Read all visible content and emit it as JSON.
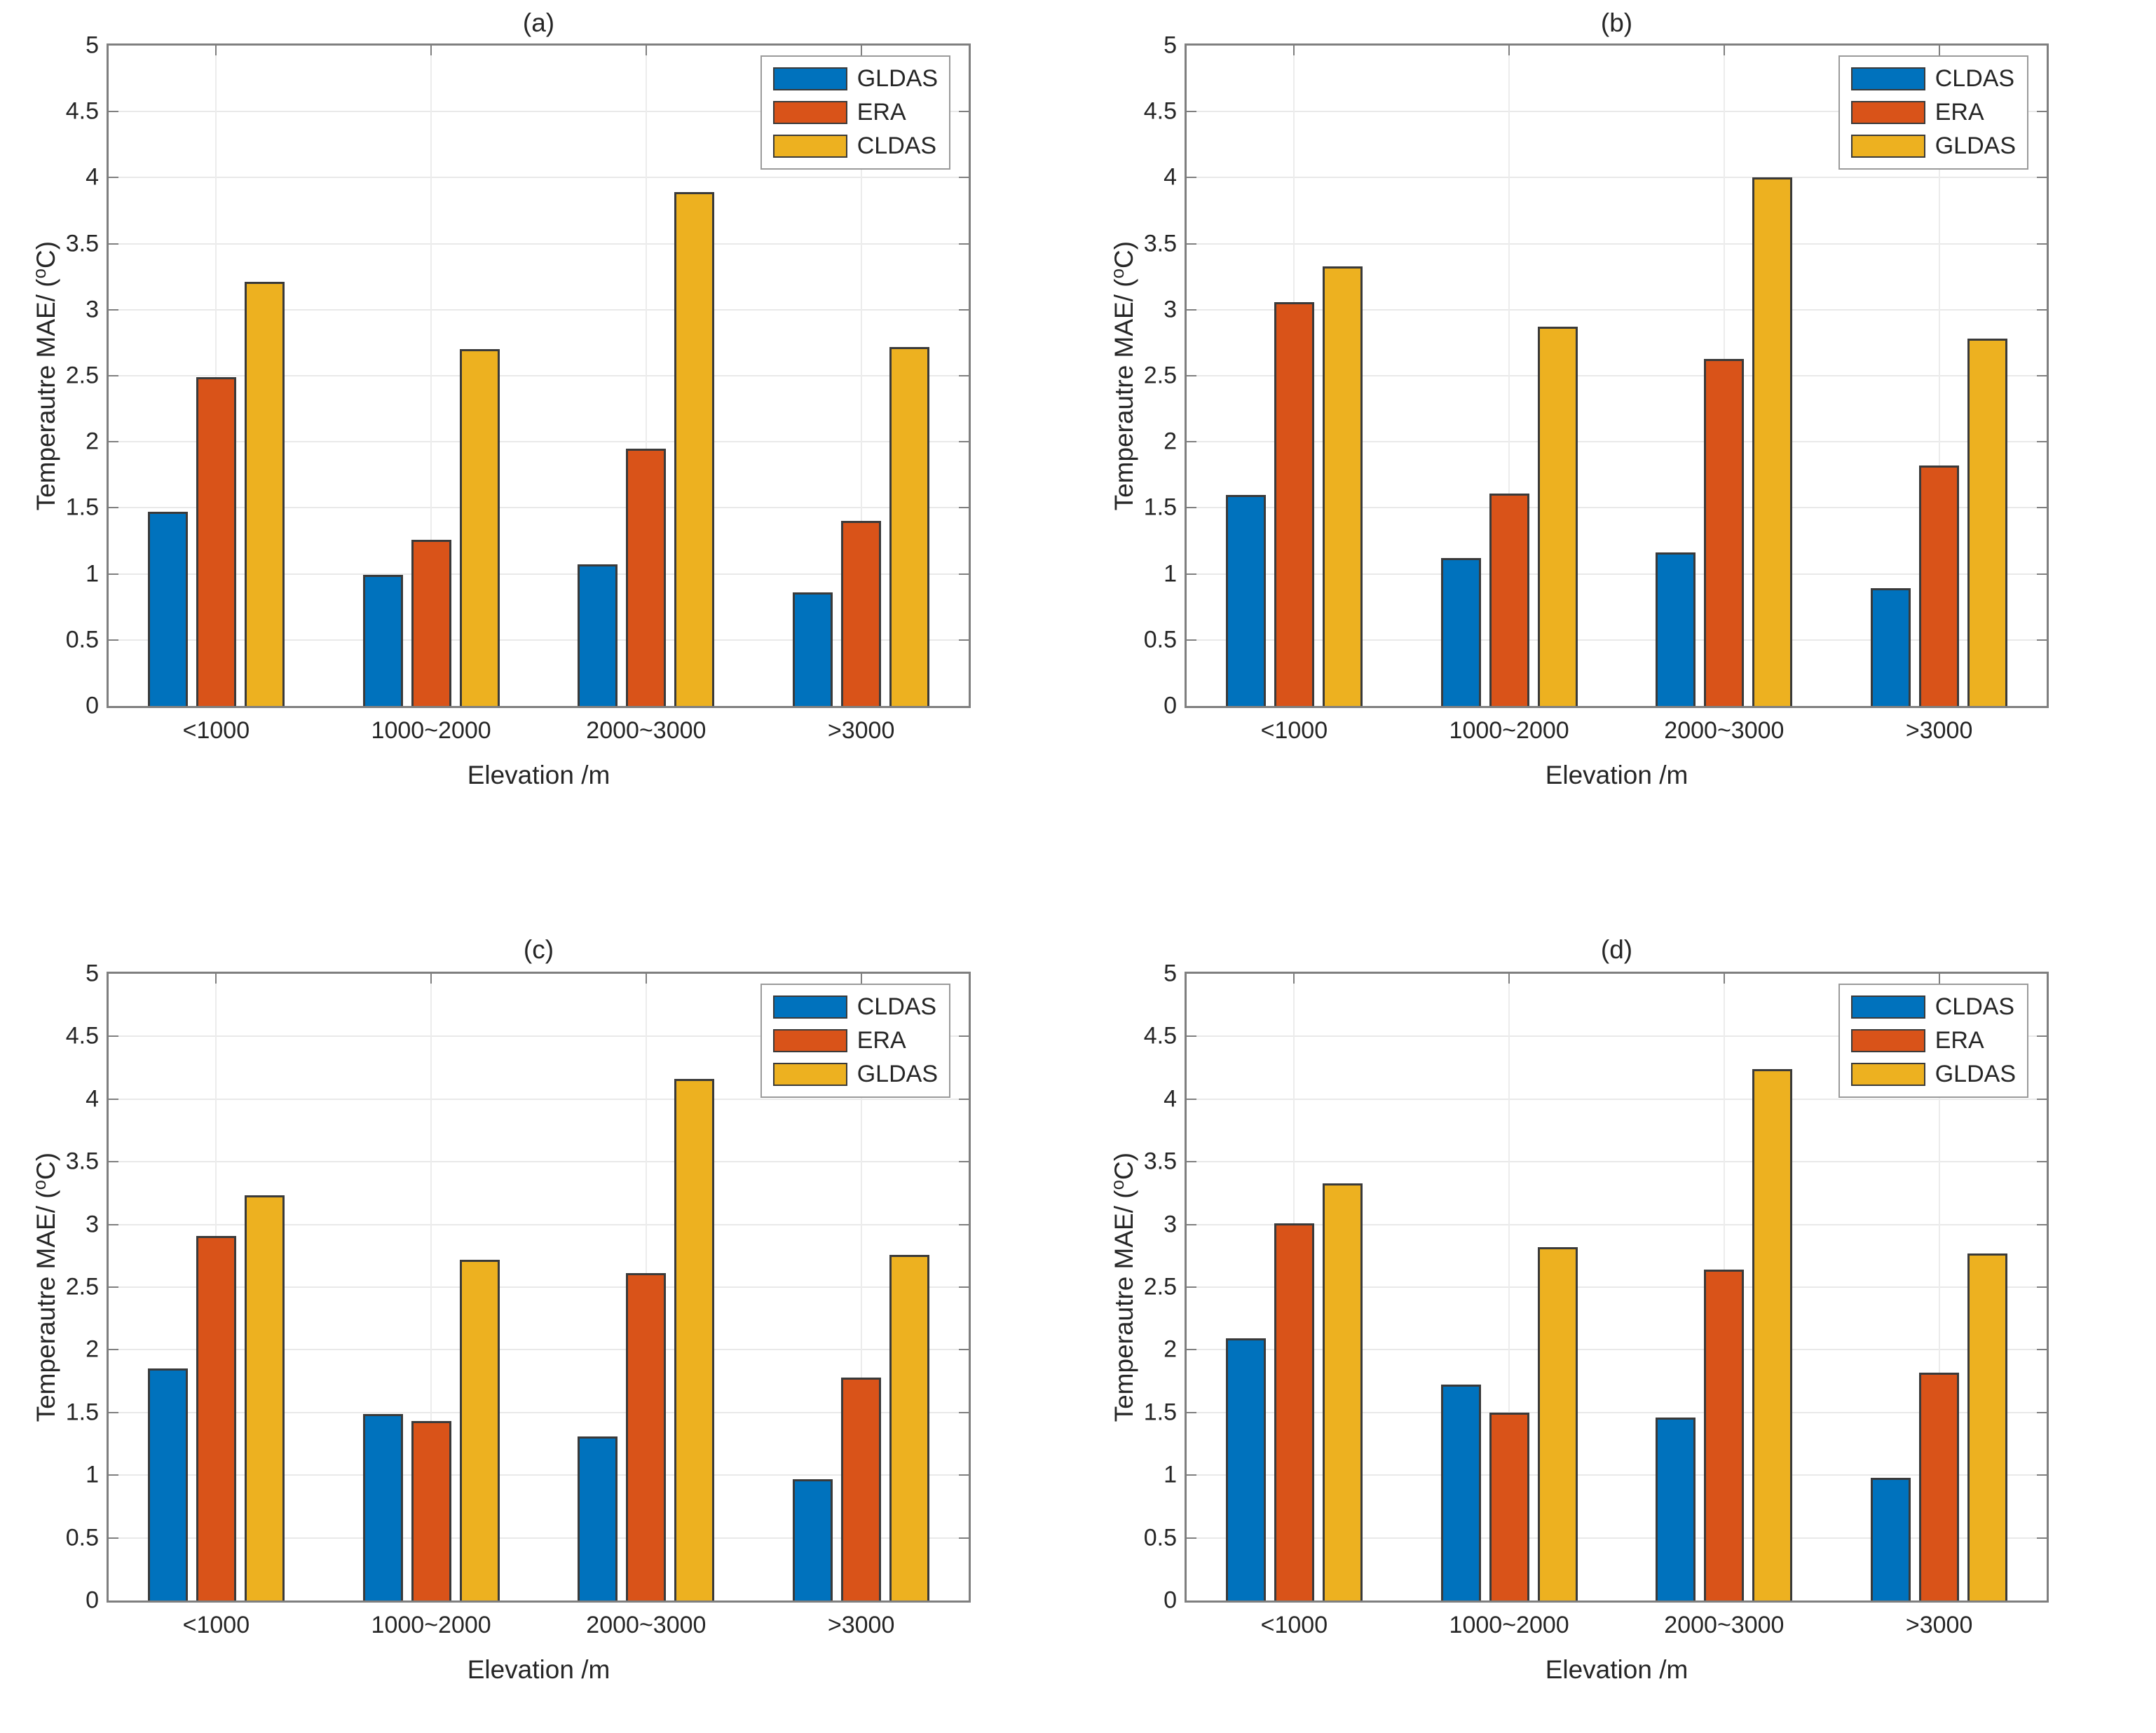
{
  "page": {
    "background": "#ffffff"
  },
  "colors": {
    "series_blue": "#0072BD",
    "series_orange": "#D95319",
    "series_yellow": "#EDB120",
    "bar_edge": "#3a3a3a",
    "axis_box": "#7f7f7f",
    "gridline": "#e9e9e9",
    "text": "#262626",
    "legend_border": "#9a9a9a"
  },
  "axis": {
    "ylabel": "Temperautre MAE/ (ᵒC)",
    "ylabel_prefix": "Temperautre MAE/ (",
    "ylabel_sup": "o",
    "ylabel_suffix": "C)",
    "xlabel": "Elevation /m",
    "ymin": 0,
    "ymax": 5,
    "ystep": 0.5,
    "ytick_labels": [
      "0",
      "0.5",
      "1",
      "1.5",
      "2",
      "2.5",
      "3",
      "3.5",
      "4",
      "4.5",
      "5"
    ]
  },
  "chart_data": [
    {
      "type": "bar",
      "title": "(a)",
      "categories": [
        "<1000",
        "1000~2000",
        "2000~3000",
        ">3000"
      ],
      "series": [
        {
          "name": "GLDAS",
          "color": "blue",
          "values": [
            1.47,
            0.99,
            1.07,
            0.86
          ]
        },
        {
          "name": "ERA",
          "color": "orange",
          "values": [
            2.49,
            1.26,
            1.95,
            1.4
          ]
        },
        {
          "name": "CLDAS",
          "color": "yellow",
          "values": [
            3.21,
            2.7,
            3.89,
            2.72
          ]
        }
      ],
      "legend": [
        "GLDAS",
        "ERA",
        "CLDAS"
      ],
      "legend_position": "top-right",
      "xlabel": "Elevation /m",
      "ylabel": "Temperautre MAE/ (ᵒC)",
      "ylim": [
        0,
        5
      ],
      "grid": true
    },
    {
      "type": "bar",
      "title": "(b)",
      "categories": [
        "<1000",
        "1000~2000",
        "2000~3000",
        ">3000"
      ],
      "series": [
        {
          "name": "CLDAS",
          "color": "blue",
          "values": [
            1.6,
            1.12,
            1.16,
            0.89
          ]
        },
        {
          "name": "ERA",
          "color": "orange",
          "values": [
            3.06,
            1.61,
            2.63,
            1.82
          ]
        },
        {
          "name": "GLDAS",
          "color": "yellow",
          "values": [
            3.33,
            2.87,
            4.0,
            2.78
          ]
        }
      ],
      "legend": [
        "CLDAS",
        "ERA",
        "GLDAS"
      ],
      "legend_position": "top-right",
      "xlabel": "Elevation /m",
      "ylabel": "Temperautre MAE/ (ᵒC)",
      "ylim": [
        0,
        5
      ],
      "grid": true
    },
    {
      "type": "bar",
      "title": "(c)",
      "categories": [
        "<1000",
        "1000~2000",
        "2000~3000",
        ">3000"
      ],
      "series": [
        {
          "name": "CLDAS",
          "color": "blue",
          "values": [
            1.85,
            1.49,
            1.31,
            0.97
          ]
        },
        {
          "name": "ERA",
          "color": "orange",
          "values": [
            2.91,
            1.43,
            2.61,
            1.78
          ]
        },
        {
          "name": "GLDAS",
          "color": "yellow",
          "values": [
            3.23,
            2.72,
            4.16,
            2.76
          ]
        }
      ],
      "legend": [
        "CLDAS",
        "ERA",
        "GLDAS"
      ],
      "legend_position": "top-right",
      "xlabel": "Elevation /m",
      "ylabel": "Temperautre MAE/ (ᵒC)",
      "ylim": [
        0,
        5
      ],
      "grid": true
    },
    {
      "type": "bar",
      "title": "(d)",
      "categories": [
        "<1000",
        "1000~2000",
        "2000~3000",
        ">3000"
      ],
      "series": [
        {
          "name": "CLDAS",
          "color": "blue",
          "values": [
            2.09,
            1.72,
            1.46,
            0.98
          ]
        },
        {
          "name": "ERA",
          "color": "orange",
          "values": [
            3.01,
            1.5,
            2.64,
            1.82
          ]
        },
        {
          "name": "GLDAS",
          "color": "yellow",
          "values": [
            3.33,
            2.82,
            4.24,
            2.77
          ]
        }
      ],
      "legend": [
        "CLDAS",
        "ERA",
        "GLDAS"
      ],
      "legend_position": "top-right",
      "xlabel": "Elevation /m",
      "ylabel": "Temperautre MAE/ (ᵒC)",
      "ylim": [
        0,
        5
      ],
      "grid": true
    }
  ]
}
